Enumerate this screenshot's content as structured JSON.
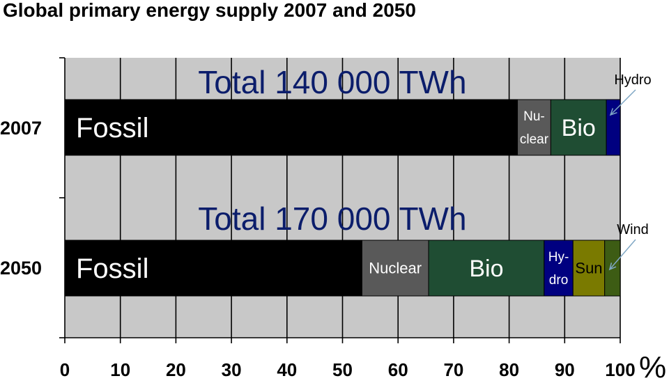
{
  "chart_data": {
    "type": "bar",
    "orientation": "horizontal",
    "stacked": true,
    "title": "Global primary energy supply 2007 and 2050",
    "xlabel": "%",
    "ylabel": "",
    "xlim": [
      0,
      100
    ],
    "x_ticks": [
      "0",
      "10",
      "20",
      "30",
      "40",
      "50",
      "60",
      "70",
      "80",
      "90",
      "100"
    ],
    "grid": true,
    "background_color": "#c8c8c8",
    "categories": [
      "2007",
      "2050"
    ],
    "rows": [
      {
        "category": "2007",
        "total_label": "Total 140 000 TWh",
        "segments": [
          {
            "name": "Fossil",
            "label_lines": [
              "Fossil"
            ],
            "start": 0,
            "end": 81.5,
            "color": "#000000",
            "text_color": "#ffffff",
            "label_placement": "left"
          },
          {
            "name": "Nuclear",
            "label_lines": [
              "Nu-",
              "clear"
            ],
            "start": 81.5,
            "end": 87.5,
            "color": "#595959",
            "text_color": "#ffffff",
            "label_placement": "center"
          },
          {
            "name": "Bio",
            "label_lines": [
              "Bio"
            ],
            "start": 87.5,
            "end": 97.5,
            "color": "#1f4d33",
            "text_color": "#ffffff",
            "label_placement": "center"
          },
          {
            "name": "Hydro",
            "label_lines": [],
            "start": 97.5,
            "end": 100,
            "color": "#000080",
            "text_color": "#ffffff",
            "label_placement": "none"
          }
        ],
        "callout": {
          "text": "Hydro",
          "segment": "Hydro"
        }
      },
      {
        "category": "2050",
        "total_label": "Total 170 000 TWh",
        "segments": [
          {
            "name": "Fossil",
            "label_lines": [
              "Fossil"
            ],
            "start": 0,
            "end": 53.5,
            "color": "#000000",
            "text_color": "#ffffff",
            "label_placement": "left"
          },
          {
            "name": "Nuclear",
            "label_lines": [
              "Nuclear"
            ],
            "start": 53.5,
            "end": 65.5,
            "color": "#595959",
            "text_color": "#ffffff",
            "label_placement": "center"
          },
          {
            "name": "Bio",
            "label_lines": [
              "Bio"
            ],
            "start": 65.5,
            "end": 86.3,
            "color": "#1f4d33",
            "text_color": "#ffffff",
            "label_placement": "center"
          },
          {
            "name": "Hydro",
            "label_lines": [
              "Hy-",
              "dro"
            ],
            "start": 86.3,
            "end": 91.5,
            "color": "#000080",
            "text_color": "#ffffff",
            "label_placement": "center"
          },
          {
            "name": "Sun",
            "label_lines": [
              "Sun"
            ],
            "start": 91.5,
            "end": 97.2,
            "color": "#7a7a00",
            "text_color": "#000000",
            "label_placement": "center"
          },
          {
            "name": "Wind",
            "label_lines": [],
            "start": 97.2,
            "end": 100,
            "color": "#3d5c14",
            "text_color": "#ffffff",
            "label_placement": "none"
          }
        ],
        "callout": {
          "text": "Wind",
          "segment": "Wind"
        }
      }
    ]
  }
}
